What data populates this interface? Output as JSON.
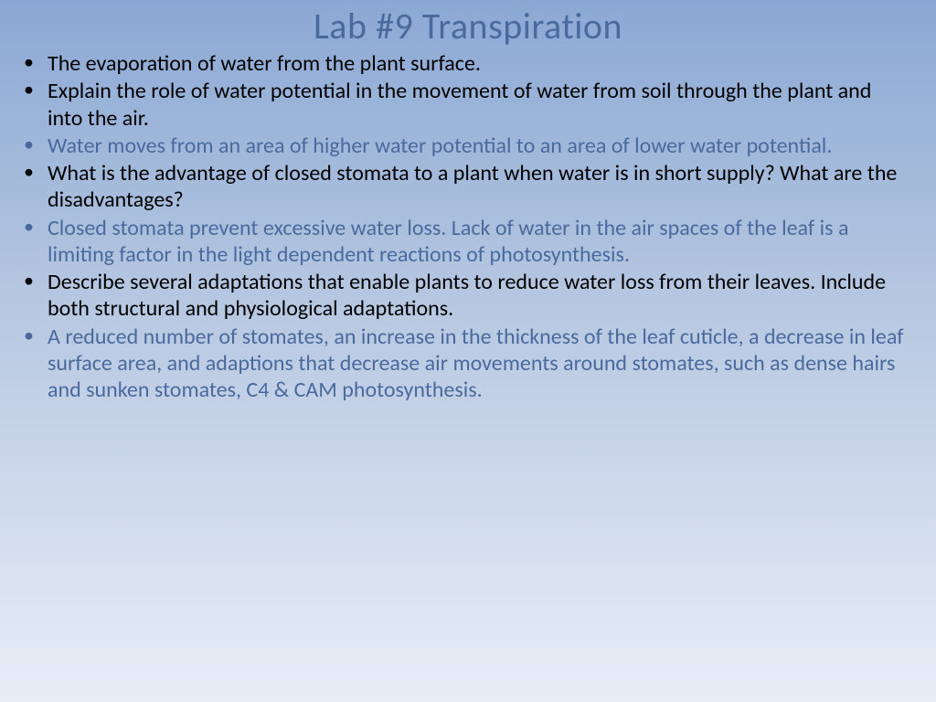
{
  "title": "Lab #9 Transpiration",
  "title_color": "#4a6a9e",
  "title_fontsize": 40,
  "body_fontsize": 24,
  "background_gradient": [
    "#8ba8d4",
    "#b3c5e0",
    "#e8eef7"
  ],
  "colors": {
    "black": "#000000",
    "blue": "#4a6a9e"
  },
  "bullets": [
    {
      "text": "The evaporation of water from the plant surface.",
      "style": "black"
    },
    {
      "text": "Explain the role of water potential in the movement of water from soil through the plant and into the air.",
      "style": "black"
    },
    {
      "text": "Water moves from an area of higher water potential to an area of lower water potential.",
      "style": "blue"
    },
    {
      "text": "What is the advantage of closed stomata to a plant when water is in short supply?  What are the disadvantages?",
      "style": "black"
    },
    {
      "text": "Closed stomata prevent excessive water loss.  Lack of water in the air spaces of the leaf is a limiting factor in the light dependent reactions of photosynthesis.",
      "style": "blue"
    },
    {
      "text": "Describe several adaptations that enable plants to reduce water loss from their leaves. Include both structural and physiological adaptations.",
      "style": "black"
    },
    {
      "text": "A reduced number of stomates, an increase in the thickness of the leaf cuticle, a decrease in leaf surface area, and adaptions that decrease air movements around stomates, such as dense hairs  and sunken stomates, C4 & CAM photosynthesis.",
      "style": "blue"
    }
  ]
}
